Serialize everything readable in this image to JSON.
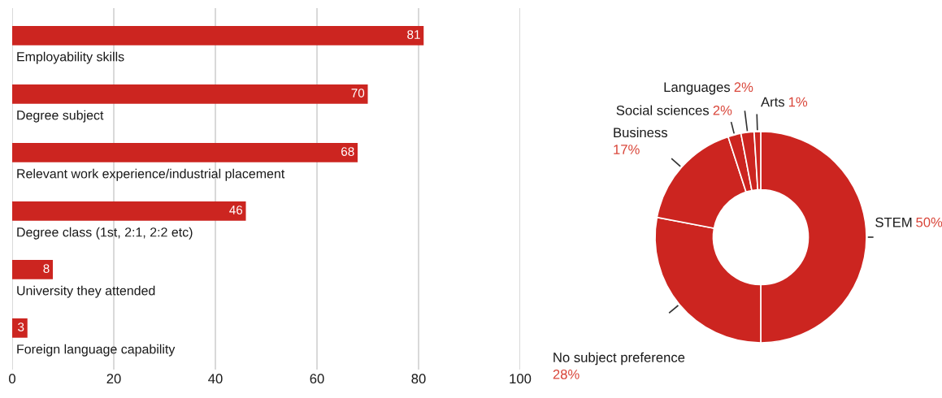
{
  "chart_data": [
    {
      "type": "bar",
      "orientation": "horizontal",
      "categories": [
        "Employability skills",
        "Degree subject",
        "Relevant work experience/industrial placement",
        "Degree class (1st, 2:1, 2:2 etc)",
        "University they attended",
        "Foreign language capability"
      ],
      "values": [
        81,
        70,
        68,
        46,
        8,
        3
      ],
      "color": "#cc2520",
      "xlim": [
        0,
        100
      ],
      "xticks": [
        0,
        20,
        40,
        60,
        80,
        100
      ],
      "grid": "x",
      "data_labels": true
    },
    {
      "type": "donut",
      "categories": [
        "STEM",
        "No subject preference",
        "Business",
        "Social sciences",
        "Languages",
        "Arts"
      ],
      "values": [
        50,
        28,
        17,
        2,
        2,
        1
      ],
      "colors": [
        "#cc2520",
        "#cc2520",
        "#cc2520",
        "#cc2520",
        "#cc2520",
        "#cc2520"
      ],
      "value_labels": [
        "50%",
        "28%",
        "17%",
        "2%",
        "2%",
        "1%"
      ]
    }
  ]
}
